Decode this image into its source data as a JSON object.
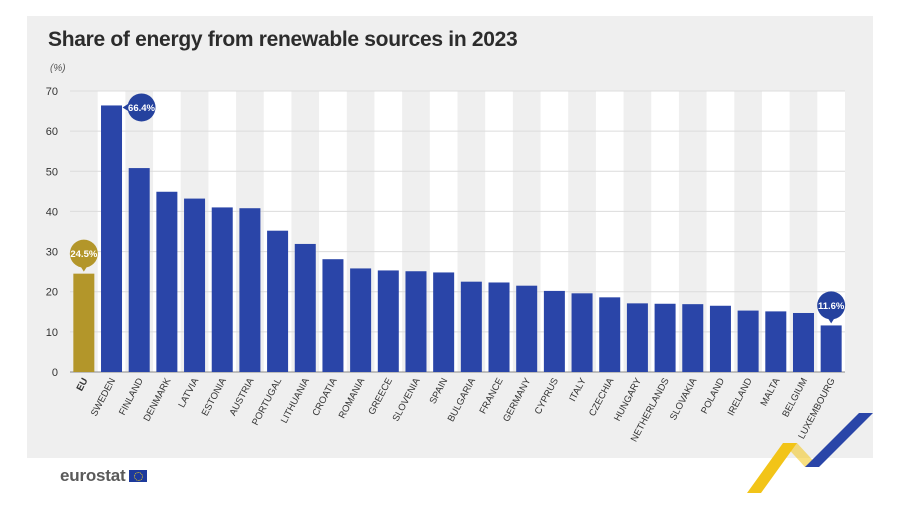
{
  "title": "Share of energy from renewable sources in 2023",
  "unit_label": "(%)",
  "brand": "eurostat",
  "colors": {
    "panel_bg": "#efefef",
    "stripe": "#ffffff",
    "eu_bar": "#b3962a",
    "country_bar": "#2a45a8",
    "callout_eu": "#b3962a",
    "callout_country": "#25429e"
  },
  "chart_data": {
    "type": "bar",
    "ylabel": "(%)",
    "ylim": [
      0,
      70
    ],
    "yticks": [
      0,
      10,
      20,
      30,
      40,
      50,
      60,
      70
    ],
    "grid": true,
    "categories": [
      "EU",
      "SWEDEN",
      "FINLAND",
      "DENMARK",
      "LATVIA",
      "ESTONIA",
      "AUSTRIA",
      "PORTUGAL",
      "LITHUANIA",
      "CROATIA",
      "ROMANIA",
      "GREECE",
      "SLOVENIA",
      "SPAIN",
      "BULGARIA",
      "FRANCE",
      "GERMANY",
      "CYPRUS",
      "ITALY",
      "CZECHIA",
      "HUNGARY",
      "NETHERLANDS",
      "SLOVAKIA",
      "POLAND",
      "IRELAND",
      "MALTA",
      "BELGIUM",
      "LUXEMBOURG"
    ],
    "values": [
      24.5,
      66.4,
      50.8,
      44.9,
      43.2,
      41.0,
      40.8,
      35.2,
      31.9,
      28.1,
      25.8,
      25.3,
      25.1,
      24.8,
      22.5,
      22.3,
      21.5,
      20.2,
      19.6,
      18.6,
      17.1,
      17.0,
      16.9,
      16.5,
      15.3,
      15.1,
      14.7,
      11.6
    ],
    "highlight": [
      {
        "category": "EU",
        "label": "24.5%"
      },
      {
        "category": "SWEDEN",
        "label": "66.4%"
      },
      {
        "category": "LUXEMBOURG",
        "label": "11.6%"
      }
    ]
  }
}
